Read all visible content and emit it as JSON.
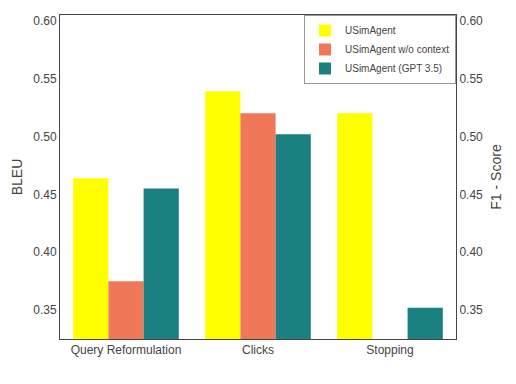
{
  "chart_data": {
    "type": "bar",
    "categories": [
      "Query Reformulation",
      "Clicks",
      "Stopping"
    ],
    "series": [
      {
        "name": "USimAgent",
        "color": "#ffff00",
        "values": [
          0.464,
          0.539,
          0.52
        ]
      },
      {
        "name": "USimAgent w/o context",
        "color": "#f07858",
        "values": [
          0.375,
          0.52,
          null
        ]
      },
      {
        "name": "USimAgent (GPT 3.5)",
        "color": "#1a8080",
        "values": [
          0.455,
          0.502,
          0.352
        ]
      }
    ],
    "ylabel": "BLEU",
    "y2label": "F1 - Score",
    "ylim": [
      0.325,
      0.605
    ],
    "yticks": [
      0.35,
      {
        "value": 0.4,
        "label": "0.40"
      },
      0.45,
      {
        "value": 0.5,
        "label": "0.50"
      },
      0.55,
      {
        "value": 0.6,
        "label": "0.60"
      }
    ],
    "y2lim": [
      0.325,
      0.605
    ],
    "y2ticks": [
      0.35,
      {
        "value": 0.4,
        "label": "0.40"
      },
      0.45,
      {
        "value": 0.5,
        "label": "0.50"
      },
      0.55,
      {
        "value": 0.6,
        "label": "0.60"
      }
    ],
    "grid": false,
    "legend": "upper right"
  }
}
